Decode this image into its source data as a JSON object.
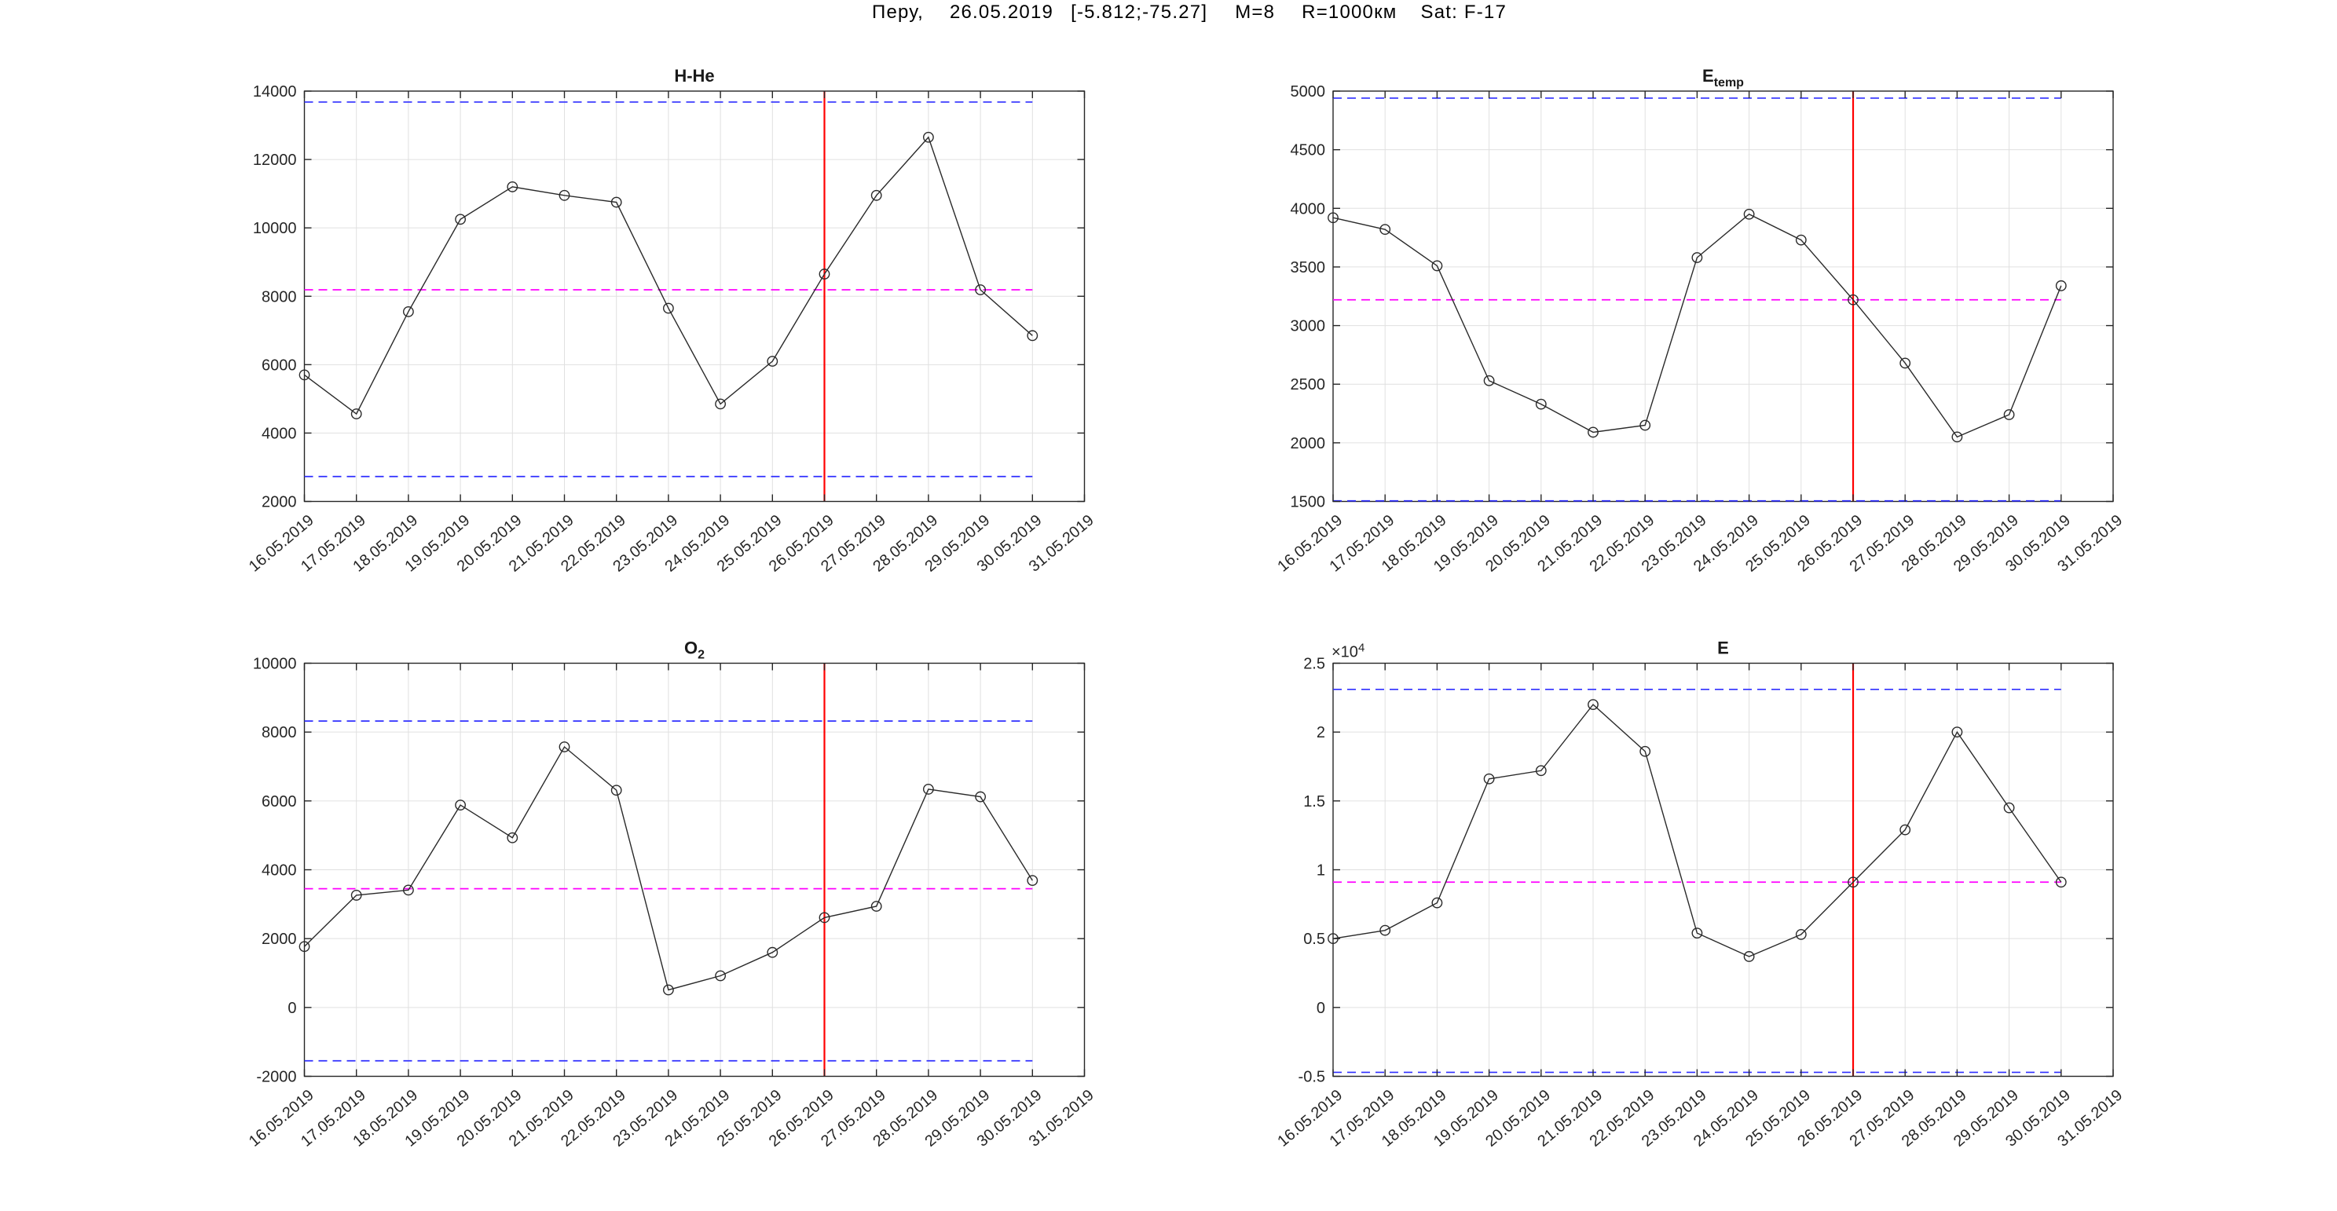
{
  "page_title_segments": {
    "location": "Перу,",
    "date": "26.05.2019",
    "coordinates": "[-5.812;-75.27]",
    "magnitude": "M=8",
    "radius": "R=1000км",
    "satellite": "Sat: F-17"
  },
  "event_date": "26.05.2019",
  "dates": [
    "16.05.2019",
    "17.05.2019",
    "18.05.2019",
    "19.05.2019",
    "20.05.2019",
    "21.05.2019",
    "22.05.2019",
    "23.05.2019",
    "24.05.2019",
    "25.05.2019",
    "26.05.2019",
    "27.05.2019",
    "28.05.2019",
    "29.05.2019",
    "30.05.2019"
  ],
  "x_tick_labels": [
    "16.05.2019",
    "17.05.2019",
    "18.05.2019",
    "19.05.2019",
    "20.05.2019",
    "21.05.2019",
    "22.05.2019",
    "23.05.2019",
    "24.05.2019",
    "25.05.2019",
    "26.05.2019",
    "27.05.2019",
    "28.05.2019",
    "29.05.2019",
    "30.05.2019",
    "31.05.2019"
  ],
  "colors": {
    "data_line": "#2a2a2a",
    "marker": "#2a2a2a",
    "limit_line": "#2e2eff",
    "mean_line": "#ff00ff",
    "event_line": "#ff0000",
    "grid": "#e0e0e0",
    "axis": "#262626",
    "text": "#262626"
  },
  "chart_data": [
    {
      "type": "line",
      "title": "H-He",
      "title_sub": "",
      "position": "top-left",
      "ylim": [
        2000,
        14000
      ],
      "ytick_step": 2000,
      "values": [
        5700,
        4560,
        7550,
        10250,
        11200,
        10950,
        10750,
        7650,
        4850,
        6100,
        8650,
        10950,
        12650,
        8190,
        6850
      ],
      "upper_limit": 13680,
      "mean_line": 8190,
      "lower_limit": 2730
    },
    {
      "type": "line",
      "title": "E",
      "title_sub": "temp",
      "position": "top-right",
      "ylim": [
        1500,
        5000
      ],
      "ytick_step": 500,
      "values": [
        3920,
        3820,
        3510,
        2530,
        2330,
        2090,
        2150,
        3580,
        3950,
        3730,
        3220,
        2680,
        2050,
        2240,
        3340
      ],
      "upper_limit": 4940,
      "mean_line": 3220,
      "lower_limit": 1505
    },
    {
      "type": "line",
      "title": "O",
      "title_sub": "2",
      "position": "bottom-left",
      "ylim": [
        -2000,
        10000
      ],
      "ytick_step": 2000,
      "values": [
        1770,
        3260,
        3410,
        5880,
        4930,
        7570,
        6310,
        510,
        920,
        1600,
        2610,
        2940,
        6340,
        6120,
        3690
      ],
      "upper_limit": 8320,
      "mean_line": 3450,
      "lower_limit": -1550
    },
    {
      "type": "line",
      "title": "E",
      "title_sub": "",
      "position": "bottom-right",
      "ylim": [
        -5000,
        25000
      ],
      "ytick_step": 5000,
      "y_scale_div": 10000,
      "exp_label_base": "×10",
      "exp_label_sup": "4",
      "values": [
        5000,
        5600,
        7600,
        16600,
        17200,
        22000,
        18600,
        5400,
        3700,
        5300,
        9100,
        12900,
        20000,
        14500,
        9100
      ],
      "upper_limit": 23100,
      "mean_line": 9100,
      "lower_limit": -4710
    }
  ]
}
